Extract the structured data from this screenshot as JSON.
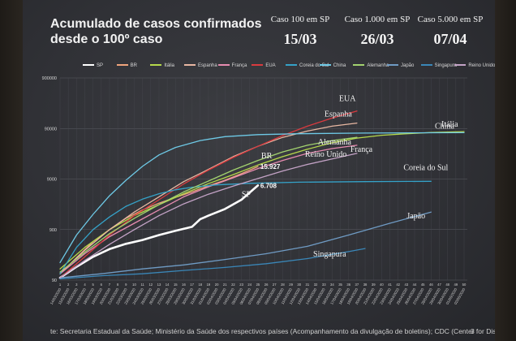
{
  "slide": {
    "title_line1": "Acumulado de casos confirmados",
    "title_line2": "desde o 100º caso",
    "milestones": [
      {
        "label": "Caso 100 em SP",
        "date": "15/03"
      },
      {
        "label": "Caso 1.000 em SP",
        "date": "26/03"
      },
      {
        "label": "Caso 5.000 em SP",
        "date": "07/04"
      }
    ],
    "source": "te: Secretaria Estadual da Saúde; Ministério da Saúde dos respectivos países (Acompanhamento da divulgação de boletins); CDC (Center for Disease",
    "page_number": "3"
  },
  "chart_data": {
    "type": "line",
    "y_scale": "log",
    "ylim": [
      90,
      900000
    ],
    "y_ticks": [
      {
        "value": 90,
        "label": "90"
      },
      {
        "value": 900,
        "label": "900"
      },
      {
        "value": 9000,
        "label": "9000"
      },
      {
        "value": 90000,
        "label": "90000"
      },
      {
        "value": 900000,
        "label": "900000"
      }
    ],
    "x_ticks": [
      "14/03/2020",
      "15/03/2020",
      "16/03/2020",
      "17/03/2020",
      "18/03/2020",
      "19/03/2020",
      "20/03/2020",
      "21/03/2020",
      "22/03/2020",
      "23/03/2020",
      "24/03/2020",
      "25/03/2020",
      "26/03/2020",
      "27/03/2020",
      "28/03/2020",
      "29/03/2020",
      "30/03/2020",
      "31/03/2020",
      "01/04/2020",
      "02/04/2020",
      "03/04/2020",
      "04/04/2020",
      "05/04/2020",
      "06/04/2020",
      "07/04/2020",
      "08/04/2020",
      "09/04/2020",
      "10/04/2020",
      "11/04/2020",
      "12/04/2020",
      "13/04/2020",
      "14/04/2020",
      "15/04/2020",
      "16/04/2020",
      "17/04/2020",
      "18/04/2020",
      "19/04/2020",
      "20/04/2020",
      "21/04/2020",
      "22/04/2020",
      "23/04/2020",
      "24/04/2020",
      "25/04/2020",
      "26/04/2020",
      "27/04/2020",
      "28/04/2020",
      "29/04/2020",
      "30/04/2020",
      "01/05/2020",
      "02/05/2020"
    ],
    "x_day_numbers": [
      "1",
      "2",
      "3",
      "4",
      "5",
      "6",
      "7",
      "8",
      "9",
      "10",
      "11",
      "12",
      "13",
      "14",
      "15",
      "16",
      "17",
      "18",
      "19",
      "20",
      "21",
      "22",
      "23",
      "24",
      "25",
      "26",
      "27",
      "28",
      "29",
      "30",
      "31",
      "32",
      "33",
      "34",
      "35",
      "36",
      "37",
      "38",
      "39",
      "40",
      "41",
      "42",
      "43",
      "44",
      "45",
      "46",
      "47",
      "48",
      "49",
      "50"
    ],
    "grid": true,
    "legend_position": "top",
    "series": [
      {
        "name": "SP",
        "color": "#ffffff",
        "label": "SP",
        "end_label": "6.708",
        "days": [
          1,
          3,
          5,
          7,
          9,
          11,
          13,
          15,
          17,
          18,
          19,
          21,
          23,
          25
        ],
        "values": [
          100,
          165,
          260,
          370,
          470,
          560,
          700,
          850,
          1020,
          1450,
          1700,
          2300,
          3500,
          6708
        ]
      },
      {
        "name": "BR",
        "color": "#f0a47c",
        "label": "BR",
        "end_label": "15.927",
        "days": [
          1,
          3,
          5,
          7,
          9,
          11,
          13,
          15,
          17,
          19,
          21,
          23,
          25
        ],
        "values": [
          120,
          250,
          520,
          900,
          1500,
          2200,
          3000,
          3900,
          5000,
          6600,
          8500,
          11500,
          15927
        ]
      },
      {
        "name": "Itália",
        "color": "#b6d94b",
        "label": "Itália",
        "days": [
          1,
          4,
          7,
          10,
          13,
          16,
          19,
          22,
          25,
          28,
          31,
          34,
          37,
          40,
          43,
          46,
          50
        ],
        "values": [
          150,
          400,
          900,
          1700,
          2800,
          4600,
          7300,
          11000,
          17000,
          25000,
          35000,
          47000,
          58000,
          66000,
          71000,
          75000,
          78000
        ]
      },
      {
        "name": "Espanha",
        "color": "#e8b7a2",
        "label": "Espanha",
        "days": [
          1,
          4,
          7,
          10,
          13,
          16,
          19,
          22,
          25,
          28,
          31,
          34,
          37
        ],
        "values": [
          120,
          350,
          900,
          2000,
          4000,
          8000,
          14000,
          25000,
          40000,
          60000,
          80000,
          100000,
          115000
        ]
      },
      {
        "name": "França",
        "color": "#e78bb0",
        "label": "França",
        "days": [
          1,
          4,
          7,
          10,
          13,
          16,
          19,
          22,
          25,
          28,
          31,
          34,
          37
        ],
        "values": [
          120,
          300,
          650,
          1200,
          2200,
          4000,
          6300,
          9500,
          14500,
          21000,
          29000,
          36000,
          42000
        ]
      },
      {
        "name": "EUA",
        "color": "#d93a3f",
        "label": "EUA",
        "days": [
          1,
          4,
          7,
          10,
          13,
          16,
          19,
          22,
          25,
          28,
          31,
          34,
          37
        ],
        "values": [
          100,
          260,
          700,
          1700,
          3500,
          7200,
          13500,
          24000,
          40000,
          65000,
          100000,
          145000,
          200000
        ]
      },
      {
        "name": "Coreia do Sul",
        "color": "#35a2c8",
        "label": "Coreia do Sul",
        "days": [
          1,
          3,
          5,
          7,
          9,
          11,
          13,
          15,
          17,
          20,
          24,
          30,
          38,
          46
        ],
        "values": [
          120,
          400,
          900,
          1600,
          2600,
          3600,
          4600,
          5500,
          6200,
          6900,
          7400,
          7800,
          8000,
          8100
        ]
      },
      {
        "name": "China",
        "color": "#6ec9e6",
        "label": "China",
        "days": [
          1,
          3,
          5,
          7,
          9,
          11,
          13,
          15,
          18,
          21,
          25,
          30,
          38,
          46,
          50
        ],
        "values": [
          200,
          700,
          1800,
          4200,
          8500,
          16000,
          27000,
          38000,
          52000,
          62000,
          68000,
          71000,
          73000,
          74000,
          74500
        ]
      },
      {
        "name": "Alemanha",
        "color": "#a3d36f",
        "label": "Alemanha",
        "days": [
          1,
          4,
          7,
          10,
          13,
          16,
          19,
          22,
          25,
          28,
          31,
          34,
          37
        ],
        "values": [
          130,
          320,
          750,
          1500,
          2800,
          5000,
          8200,
          13500,
          21000,
          31000,
          42000,
          52000,
          60000
        ]
      },
      {
        "name": "Japão",
        "color": "#6f9bc4",
        "label": "Japão",
        "days": [
          1,
          6,
          11,
          16,
          21,
          26,
          31,
          36,
          41,
          46
        ],
        "values": [
          100,
          120,
          150,
          180,
          230,
          300,
          420,
          700,
          1200,
          2000
        ]
      },
      {
        "name": "Singapura",
        "color": "#3a87b8",
        "label": "Singapura",
        "days": [
          1,
          6,
          11,
          16,
          21,
          26,
          31,
          36,
          38
        ],
        "values": [
          95,
          110,
          120,
          140,
          160,
          190,
          240,
          330,
          380
        ]
      },
      {
        "name": "Reino Unido",
        "color": "#c4a3c6",
        "label": "Reino Unido",
        "days": [
          1,
          4,
          7,
          10,
          13,
          16,
          19,
          22,
          25,
          28,
          31,
          34,
          37
        ],
        "values": [
          100,
          220,
          460,
          900,
          1700,
          2900,
          4500,
          6500,
          9200,
          13000,
          17500,
          22500,
          29000
        ]
      }
    ]
  }
}
